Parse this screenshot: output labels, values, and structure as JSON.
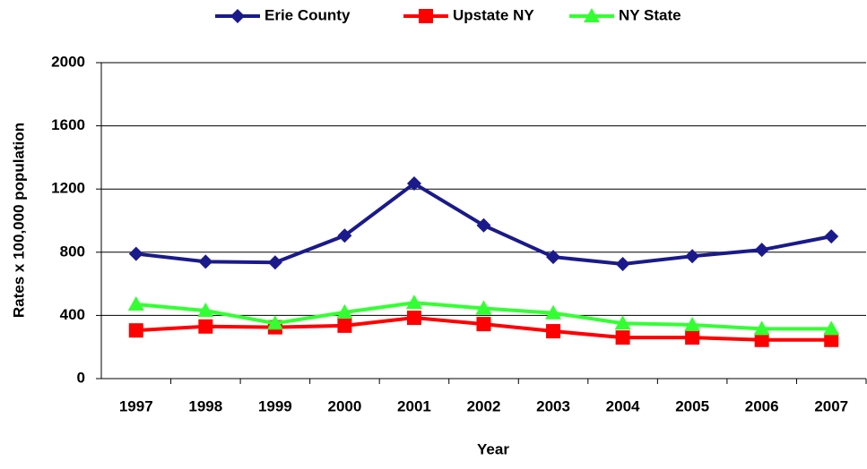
{
  "chart_data": {
    "type": "line",
    "x_label": "Year",
    "y_label": "Rates x 100,000 population",
    "categories": [
      "1997",
      "1998",
      "1999",
      "2000",
      "2001",
      "2002",
      "2003",
      "2004",
      "2005",
      "2006",
      "2007"
    ],
    "series": [
      {
        "name": "Erie County",
        "color": "#1a1a8c",
        "marker": "diamond",
        "values": [
          790,
          740,
          735,
          905,
          1235,
          970,
          770,
          725,
          775,
          815,
          900
        ]
      },
      {
        "name": "Upstate NY",
        "color": "#ff0000",
        "marker": "square",
        "values": [
          305,
          330,
          325,
          335,
          385,
          345,
          300,
          260,
          260,
          245,
          245
        ]
      },
      {
        "name": "NY State",
        "color": "#33ff33",
        "marker": "triangle",
        "values": [
          470,
          430,
          350,
          420,
          480,
          445,
          415,
          350,
          340,
          315,
          315
        ]
      }
    ],
    "ylim": [
      0,
      2000
    ],
    "yticks": [
      0,
      400,
      800,
      1200,
      1600,
      2000
    ],
    "grid": true,
    "legend": "top"
  }
}
